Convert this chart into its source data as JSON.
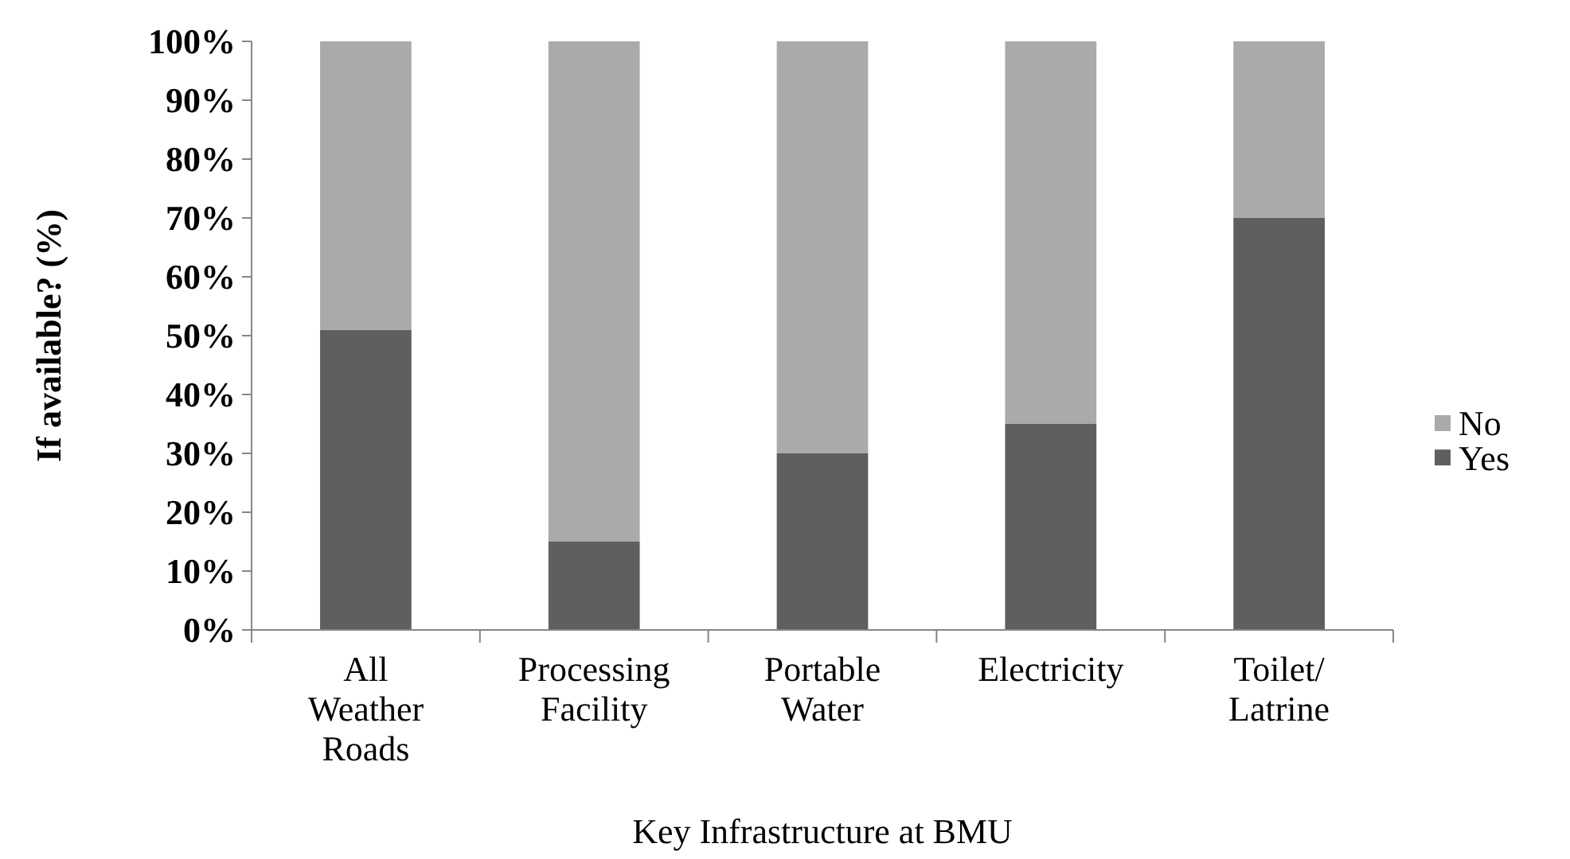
{
  "chart_data": {
    "type": "bar",
    "stacked": true,
    "xlabel": "Key Infrastructure at BMU",
    "ylabel": "If available? (%)",
    "categories": [
      "All Weather Roads",
      "Processing Facility",
      "Portable Water",
      "Electricity",
      "Toilet/Latrine"
    ],
    "series": [
      {
        "name": "Yes",
        "color": "#5f5f5f",
        "values": [
          51,
          15,
          30,
          35,
          70
        ]
      },
      {
        "name": "No",
        "color": "#aaaaaa",
        "values": [
          49,
          85,
          70,
          65,
          30
        ]
      }
    ],
    "ylim": [
      0,
      100
    ],
    "yticks": [
      {
        "value": 0,
        "label": "0%"
      },
      {
        "value": 10,
        "label": "10%"
      },
      {
        "value": 20,
        "label": "20%"
      },
      {
        "value": 30,
        "label": "30%"
      },
      {
        "value": 40,
        "label": "40%"
      },
      {
        "value": 50,
        "label": "50%"
      },
      {
        "value": 60,
        "label": "60%"
      },
      {
        "value": 70,
        "label": "70%"
      },
      {
        "value": 80,
        "label": "80%"
      },
      {
        "value": 90,
        "label": "90%"
      },
      {
        "value": 100,
        "label": "100%"
      }
    ],
    "grid": false,
    "legend": "right"
  }
}
